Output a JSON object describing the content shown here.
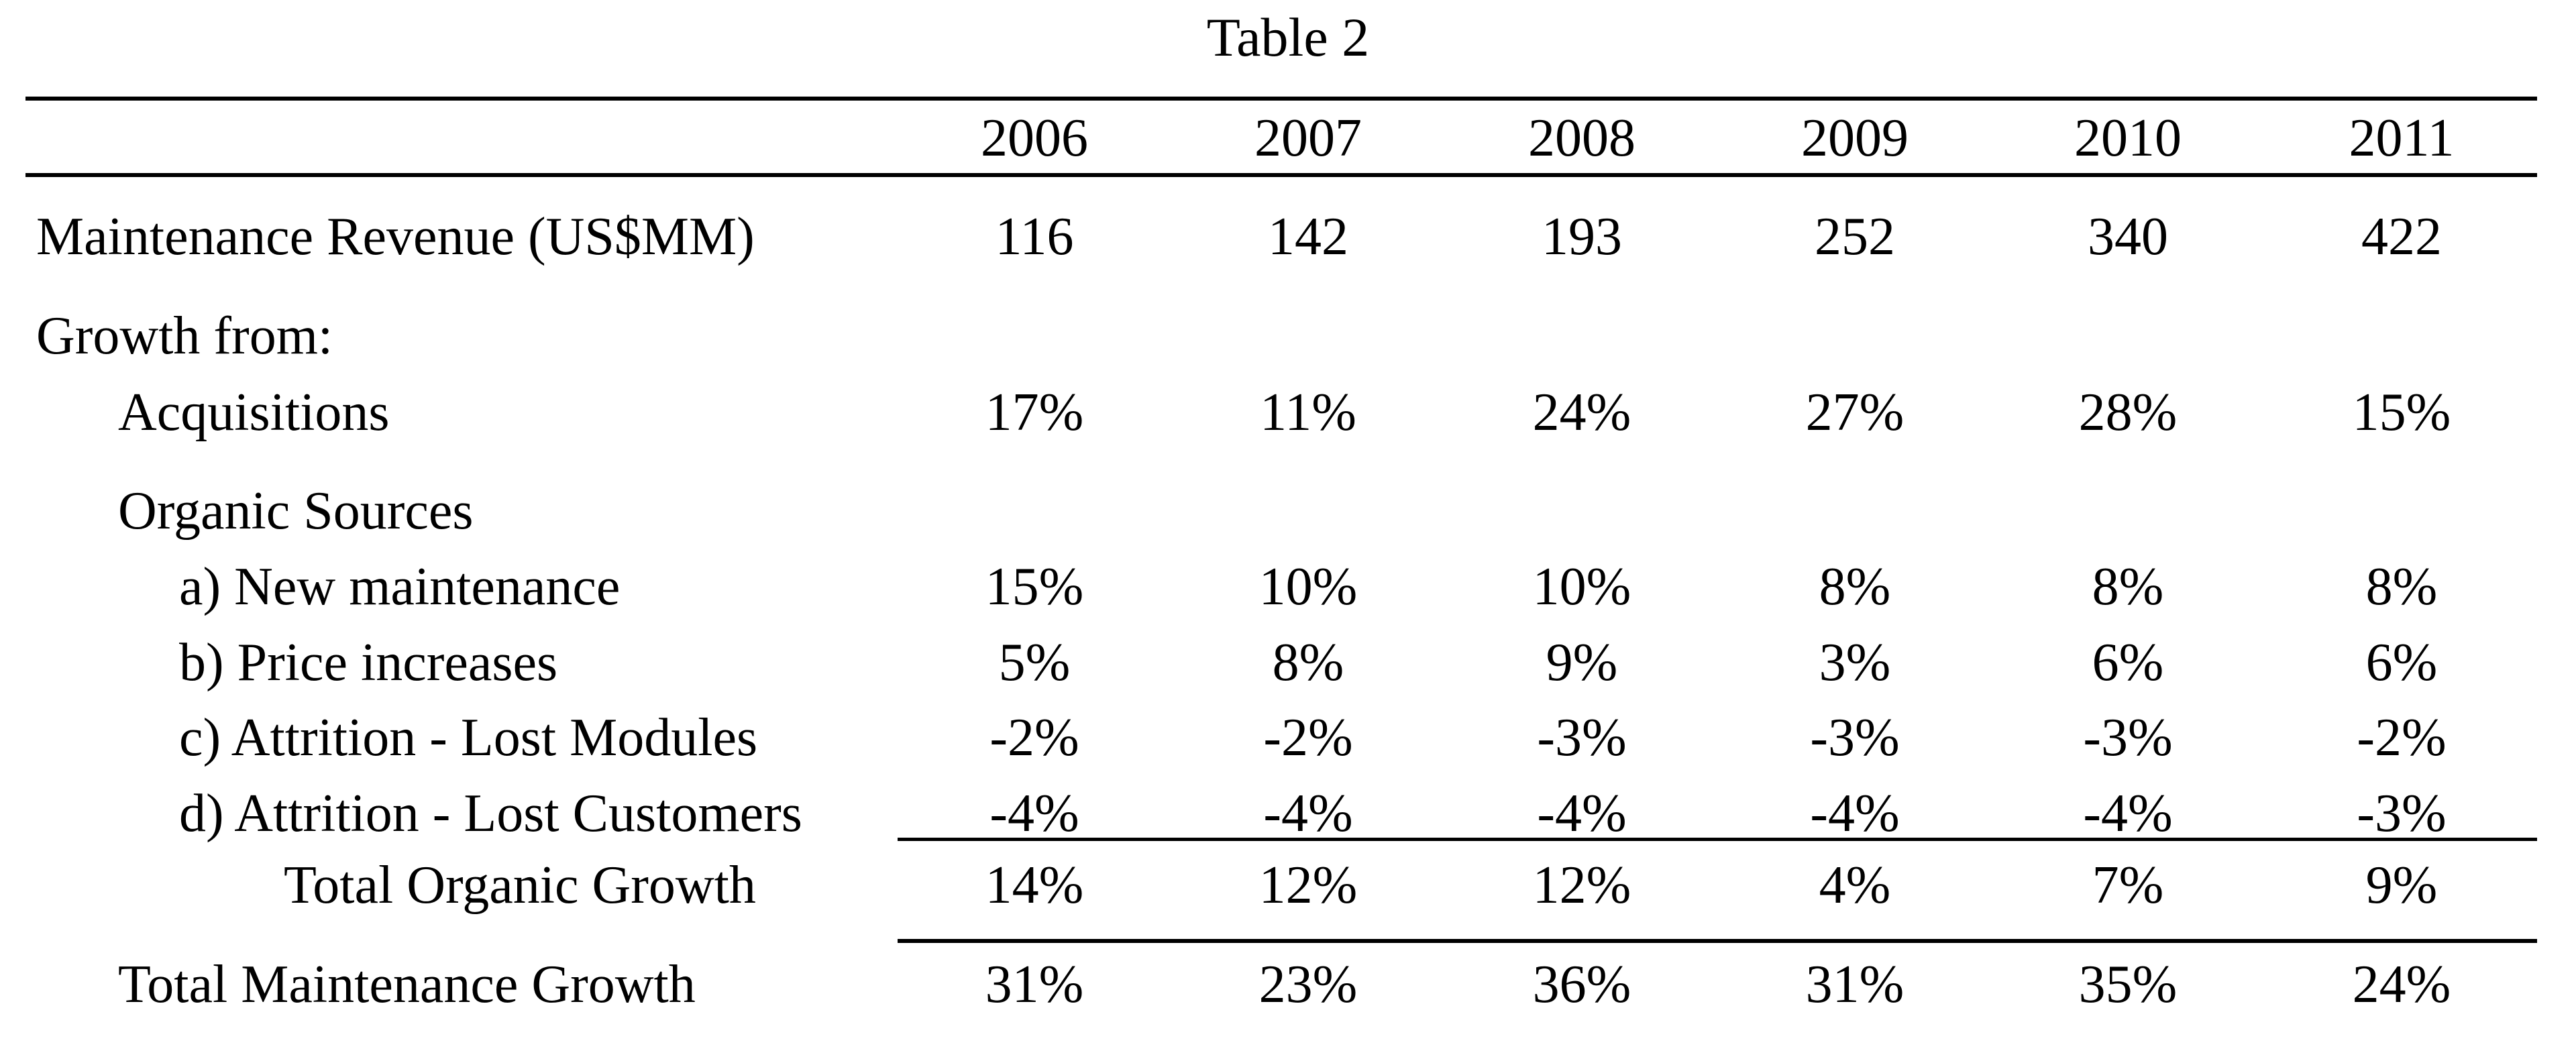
{
  "table": {
    "title": "Table 2",
    "years": [
      "2006",
      "2007",
      "2008",
      "2009",
      "2010",
      "2011"
    ],
    "rows": [
      {
        "label": "Maintenance Revenue (US$MM)",
        "values": [
          "116",
          "142",
          "193",
          "252",
          "340",
          "422"
        ]
      },
      {
        "label": "Growth from:",
        "values": []
      },
      {
        "label": "Acquisitions",
        "values": [
          "17%",
          "11%",
          "24%",
          "27%",
          "28%",
          "15%"
        ]
      },
      {
        "label": "Organic Sources",
        "values": []
      },
      {
        "label": "a) New maintenance",
        "values": [
          "15%",
          "10%",
          "10%",
          "8%",
          "8%",
          "8%"
        ]
      },
      {
        "label": "b) Price increases",
        "values": [
          "5%",
          "8%",
          "9%",
          "3%",
          "6%",
          "6%"
        ]
      },
      {
        "label": "c) Attrition - Lost Modules",
        "values": [
          "-2%",
          "-2%",
          "-3%",
          "-3%",
          "-3%",
          "-2%"
        ]
      },
      {
        "label": "d) Attrition - Lost Customers",
        "values": [
          "-4%",
          "-4%",
          "-4%",
          "-4%",
          "-4%",
          "-3%"
        ]
      },
      {
        "label": "Total Organic Growth",
        "values": [
          "14%",
          "12%",
          "12%",
          "4%",
          "7%",
          "9%"
        ]
      },
      {
        "label": "Total Maintenance Growth",
        "values": [
          "31%",
          "23%",
          "36%",
          "31%",
          "35%",
          "24%"
        ]
      }
    ]
  }
}
